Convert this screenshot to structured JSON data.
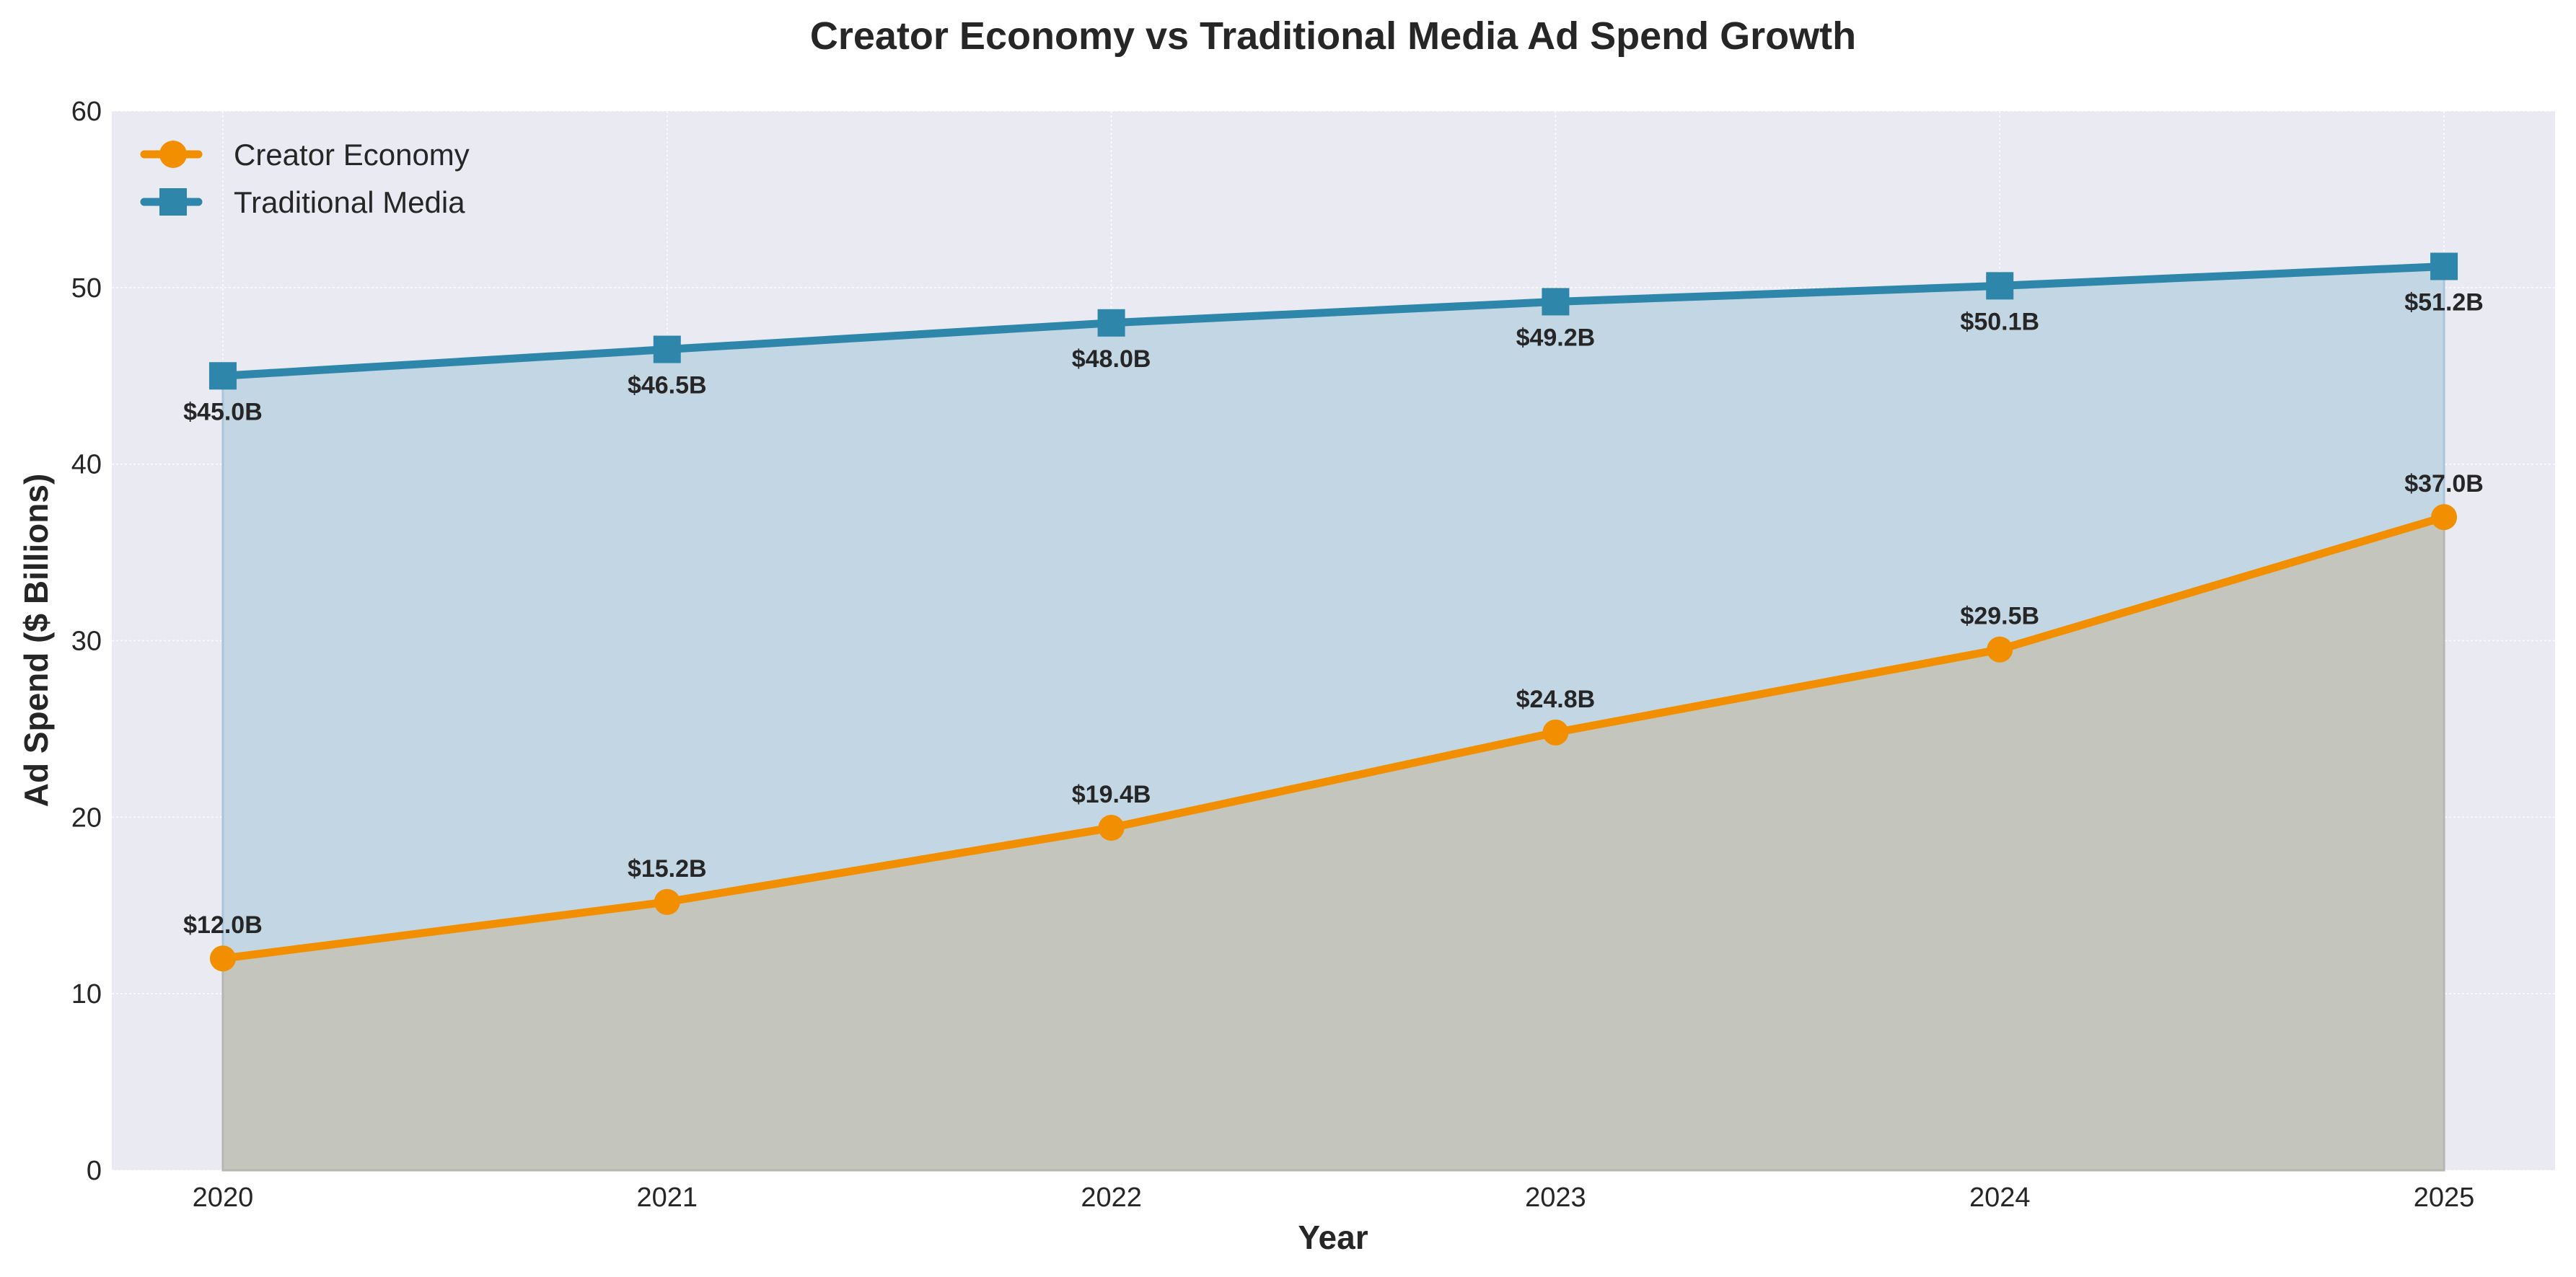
{
  "chart_data": {
    "type": "area",
    "title": "Creator Economy vs Traditional Media Ad Spend Growth",
    "xlabel": "Year",
    "ylabel": "Ad Spend ($ Billions)",
    "categories": [
      "2020",
      "2021",
      "2022",
      "2023",
      "2024",
      "2025"
    ],
    "x": [
      2020,
      2021,
      2022,
      2023,
      2024,
      2025
    ],
    "xlim": [
      2019.75,
      2025.25
    ],
    "ylim": [
      0,
      60
    ],
    "yticks": [
      0,
      10,
      20,
      30,
      40,
      50,
      60
    ],
    "xticks": [
      "2020",
      "2021",
      "2022",
      "2023",
      "2024",
      "2025"
    ],
    "grid": true,
    "legend_position": "top-left",
    "series": [
      {
        "name": "Creator Economy",
        "values": [
          12.0,
          15.2,
          19.4,
          24.8,
          29.5,
          37.0
        ],
        "labels": [
          "$12.0B",
          "$15.2B",
          "$19.4B",
          "$24.8B",
          "$29.5B",
          "$37.0B"
        ],
        "label_position": "above",
        "marker": "circle",
        "color": "#F18F01",
        "fill_color": "#C4C6BE",
        "filled": true
      },
      {
        "name": "Traditional Media",
        "values": [
          45.0,
          46.5,
          48.0,
          49.2,
          50.1,
          51.2
        ],
        "labels": [
          "$45.0B",
          "$46.5B",
          "$48.0B",
          "$49.2B",
          "$50.1B",
          "$51.2B"
        ],
        "label_position": "below",
        "marker": "square",
        "color": "#2E86AB",
        "fill_color": "#C3D6E3",
        "filled": true
      }
    ],
    "background_color": "#EAEAF2"
  }
}
